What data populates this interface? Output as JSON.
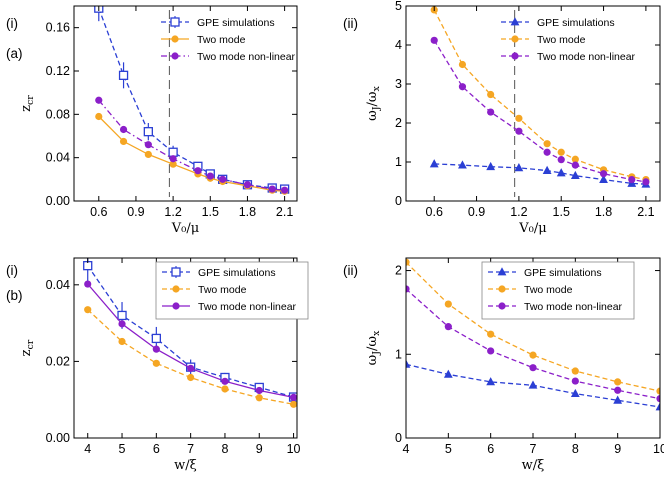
{
  "figure": {
    "row_labels": [
      "(a)",
      "(b)"
    ]
  },
  "colors": {
    "gpe": "#2b3fd4",
    "two_mode": "#f5a623",
    "non_linear": "#8b1fc9"
  },
  "chart_data": [
    {
      "type": "line",
      "panel_label": "(i)",
      "xlabel": "V₀/μ",
      "ylabel": "z_cr",
      "xlim": [
        0.4,
        2.2
      ],
      "ylim": [
        0,
        0.18
      ],
      "xticks": [
        "0.6",
        "0.9",
        "1.2",
        "1.5",
        "1.8",
        "2.1"
      ],
      "xtick_values": [
        0.6,
        0.9,
        1.2,
        1.5,
        1.8,
        2.1
      ],
      "yticks": [
        "0.00",
        "0.04",
        "0.08",
        "0.12",
        "0.16"
      ],
      "ytick_values": [
        0,
        0.04,
        0.08,
        0.12,
        0.16
      ],
      "vline": 1.17,
      "legend_position": "top-right",
      "series": [
        {
          "name": "GPE simulations",
          "marker": "square-open",
          "style": "dashed",
          "color_key": "gpe",
          "x": [
            0.6,
            0.8,
            1.0,
            1.2,
            1.4,
            1.5,
            1.6,
            1.8,
            2.0,
            2.1
          ],
          "y": [
            0.178,
            0.116,
            0.064,
            0.045,
            0.032,
            0.025,
            0.02,
            0.015,
            0.012,
            0.011
          ],
          "err": [
            0.012,
            0.012,
            0.008,
            0.006,
            0.004,
            0.003,
            0.002,
            0.002,
            0.001,
            0.001
          ]
        },
        {
          "name": "Two mode",
          "marker": "circle",
          "style": "solid",
          "color_key": "two_mode",
          "x": [
            0.6,
            0.8,
            1.0,
            1.2,
            1.4,
            1.5,
            1.6,
            1.8,
            2.0,
            2.1
          ],
          "y": [
            0.078,
            0.055,
            0.043,
            0.034,
            0.025,
            0.021,
            0.018,
            0.014,
            0.01,
            0.009
          ]
        },
        {
          "name": "Two mode non-linear",
          "marker": "circle",
          "style": "dashdot",
          "color_key": "non_linear",
          "x": [
            0.6,
            0.8,
            1.0,
            1.2,
            1.4,
            1.5,
            1.6,
            1.8,
            2.0,
            2.1
          ],
          "y": [
            0.093,
            0.066,
            0.052,
            0.039,
            0.028,
            0.023,
            0.02,
            0.015,
            0.011,
            0.01
          ]
        }
      ]
    },
    {
      "type": "line",
      "panel_label": "(ii)",
      "xlabel": "V₀/μ",
      "ylabel": "ω_J/ω_x",
      "xlim": [
        0.4,
        2.2
      ],
      "ylim": [
        0,
        5
      ],
      "xticks": [
        "0.6",
        "0.9",
        "1.2",
        "1.5",
        "1.8",
        "2.1"
      ],
      "xtick_values": [
        0.6,
        0.9,
        1.2,
        1.5,
        1.8,
        2.1
      ],
      "yticks": [
        "0",
        "1",
        "2",
        "3",
        "4",
        "5"
      ],
      "ytick_values": [
        0,
        1,
        2,
        3,
        4,
        5
      ],
      "vline": 1.17,
      "legend_position": "top-right",
      "series": [
        {
          "name": "GPE simulations",
          "marker": "triangle",
          "style": "dashed",
          "color_key": "gpe",
          "x": [
            0.6,
            0.8,
            1.0,
            1.2,
            1.4,
            1.5,
            1.6,
            1.8,
            2.0,
            2.1
          ],
          "y": [
            0.95,
            0.92,
            0.88,
            0.85,
            0.78,
            0.72,
            0.65,
            0.55,
            0.45,
            0.43
          ]
        },
        {
          "name": "Two mode",
          "marker": "circle",
          "style": "dashed",
          "color_key": "two_mode",
          "x": [
            0.6,
            0.8,
            1.0,
            1.2,
            1.4,
            1.5,
            1.6,
            1.8,
            2.0,
            2.1
          ],
          "y": [
            4.9,
            3.5,
            2.73,
            2.12,
            1.47,
            1.25,
            1.07,
            0.8,
            0.62,
            0.55
          ]
        },
        {
          "name": "Two mode non-linear",
          "marker": "circle",
          "style": "dashed",
          "color_key": "non_linear",
          "x": [
            0.6,
            0.8,
            1.0,
            1.2,
            1.4,
            1.5,
            1.6,
            1.8,
            2.0,
            2.1
          ],
          "y": [
            4.12,
            2.93,
            2.28,
            1.79,
            1.25,
            1.06,
            0.92,
            0.7,
            0.55,
            0.49
          ]
        }
      ]
    },
    {
      "type": "line",
      "panel_label": "(i)",
      "xlabel": "w/ξ",
      "ylabel": "z_cr",
      "xlim": [
        3.6,
        10.1
      ],
      "ylim": [
        0,
        0.047
      ],
      "xticks": [
        "4",
        "5",
        "6",
        "7",
        "8",
        "9",
        "10"
      ],
      "xtick_values": [
        4,
        5,
        6,
        7,
        8,
        9,
        10
      ],
      "yticks": [
        "0.00",
        "0.02",
        "0.04"
      ],
      "ytick_values": [
        0,
        0.02,
        0.04
      ],
      "legend_position": "top-right",
      "series": [
        {
          "name": "GPE simulations",
          "marker": "square-open",
          "style": "dashed",
          "color_key": "gpe",
          "x": [
            4,
            5,
            6,
            7,
            8,
            9,
            10
          ],
          "y": [
            0.045,
            0.032,
            0.026,
            0.0185,
            0.0158,
            0.0132,
            0.0107
          ],
          "err": [
            0.004,
            0.0035,
            0.003,
            0.002,
            0.0012,
            0.0011,
            0.0008
          ]
        },
        {
          "name": "Two mode",
          "marker": "circle",
          "style": "dashed",
          "color_key": "two_mode",
          "x": [
            4,
            5,
            6,
            7,
            8,
            9,
            10
          ],
          "y": [
            0.0335,
            0.0252,
            0.0195,
            0.0158,
            0.0128,
            0.0105,
            0.0088
          ]
        },
        {
          "name": "Two mode non-linear",
          "marker": "circle",
          "style": "solid",
          "color_key": "non_linear",
          "x": [
            4,
            5,
            6,
            7,
            8,
            9,
            10
          ],
          "y": [
            0.0402,
            0.0298,
            0.0232,
            0.0182,
            0.0148,
            0.0124,
            0.0106
          ]
        }
      ]
    },
    {
      "type": "line",
      "panel_label": "(ii)",
      "xlabel": "w/ξ",
      "ylabel": "ω_J/ω_x",
      "xlim": [
        4,
        10
      ],
      "ylim": [
        0,
        2.15
      ],
      "xticks": [
        "4",
        "5",
        "6",
        "7",
        "8",
        "9",
        "10"
      ],
      "xtick_values": [
        4,
        5,
        6,
        7,
        8,
        9,
        10
      ],
      "yticks": [
        "0",
        "1",
        "2"
      ],
      "ytick_values": [
        0,
        1,
        2
      ],
      "legend_position": "top-right",
      "series": [
        {
          "name": "GPE simulations",
          "marker": "triangle",
          "style": "dashed",
          "color_key": "gpe",
          "x": [
            4,
            5,
            6,
            7,
            8,
            9,
            10
          ],
          "y": [
            0.88,
            0.76,
            0.67,
            0.63,
            0.53,
            0.45,
            0.37
          ]
        },
        {
          "name": "Two mode",
          "marker": "circle",
          "style": "dashed",
          "color_key": "two_mode",
          "x": [
            4,
            5,
            6,
            7,
            8,
            9,
            10
          ],
          "y": [
            2.1,
            1.6,
            1.24,
            0.99,
            0.8,
            0.67,
            0.56
          ]
        },
        {
          "name": "Two mode non-linear",
          "marker": "circle",
          "style": "dashed",
          "color_key": "non_linear",
          "x": [
            4,
            5,
            6,
            7,
            8,
            9,
            10
          ],
          "y": [
            1.78,
            1.33,
            1.04,
            0.84,
            0.68,
            0.57,
            0.47
          ]
        }
      ]
    }
  ]
}
